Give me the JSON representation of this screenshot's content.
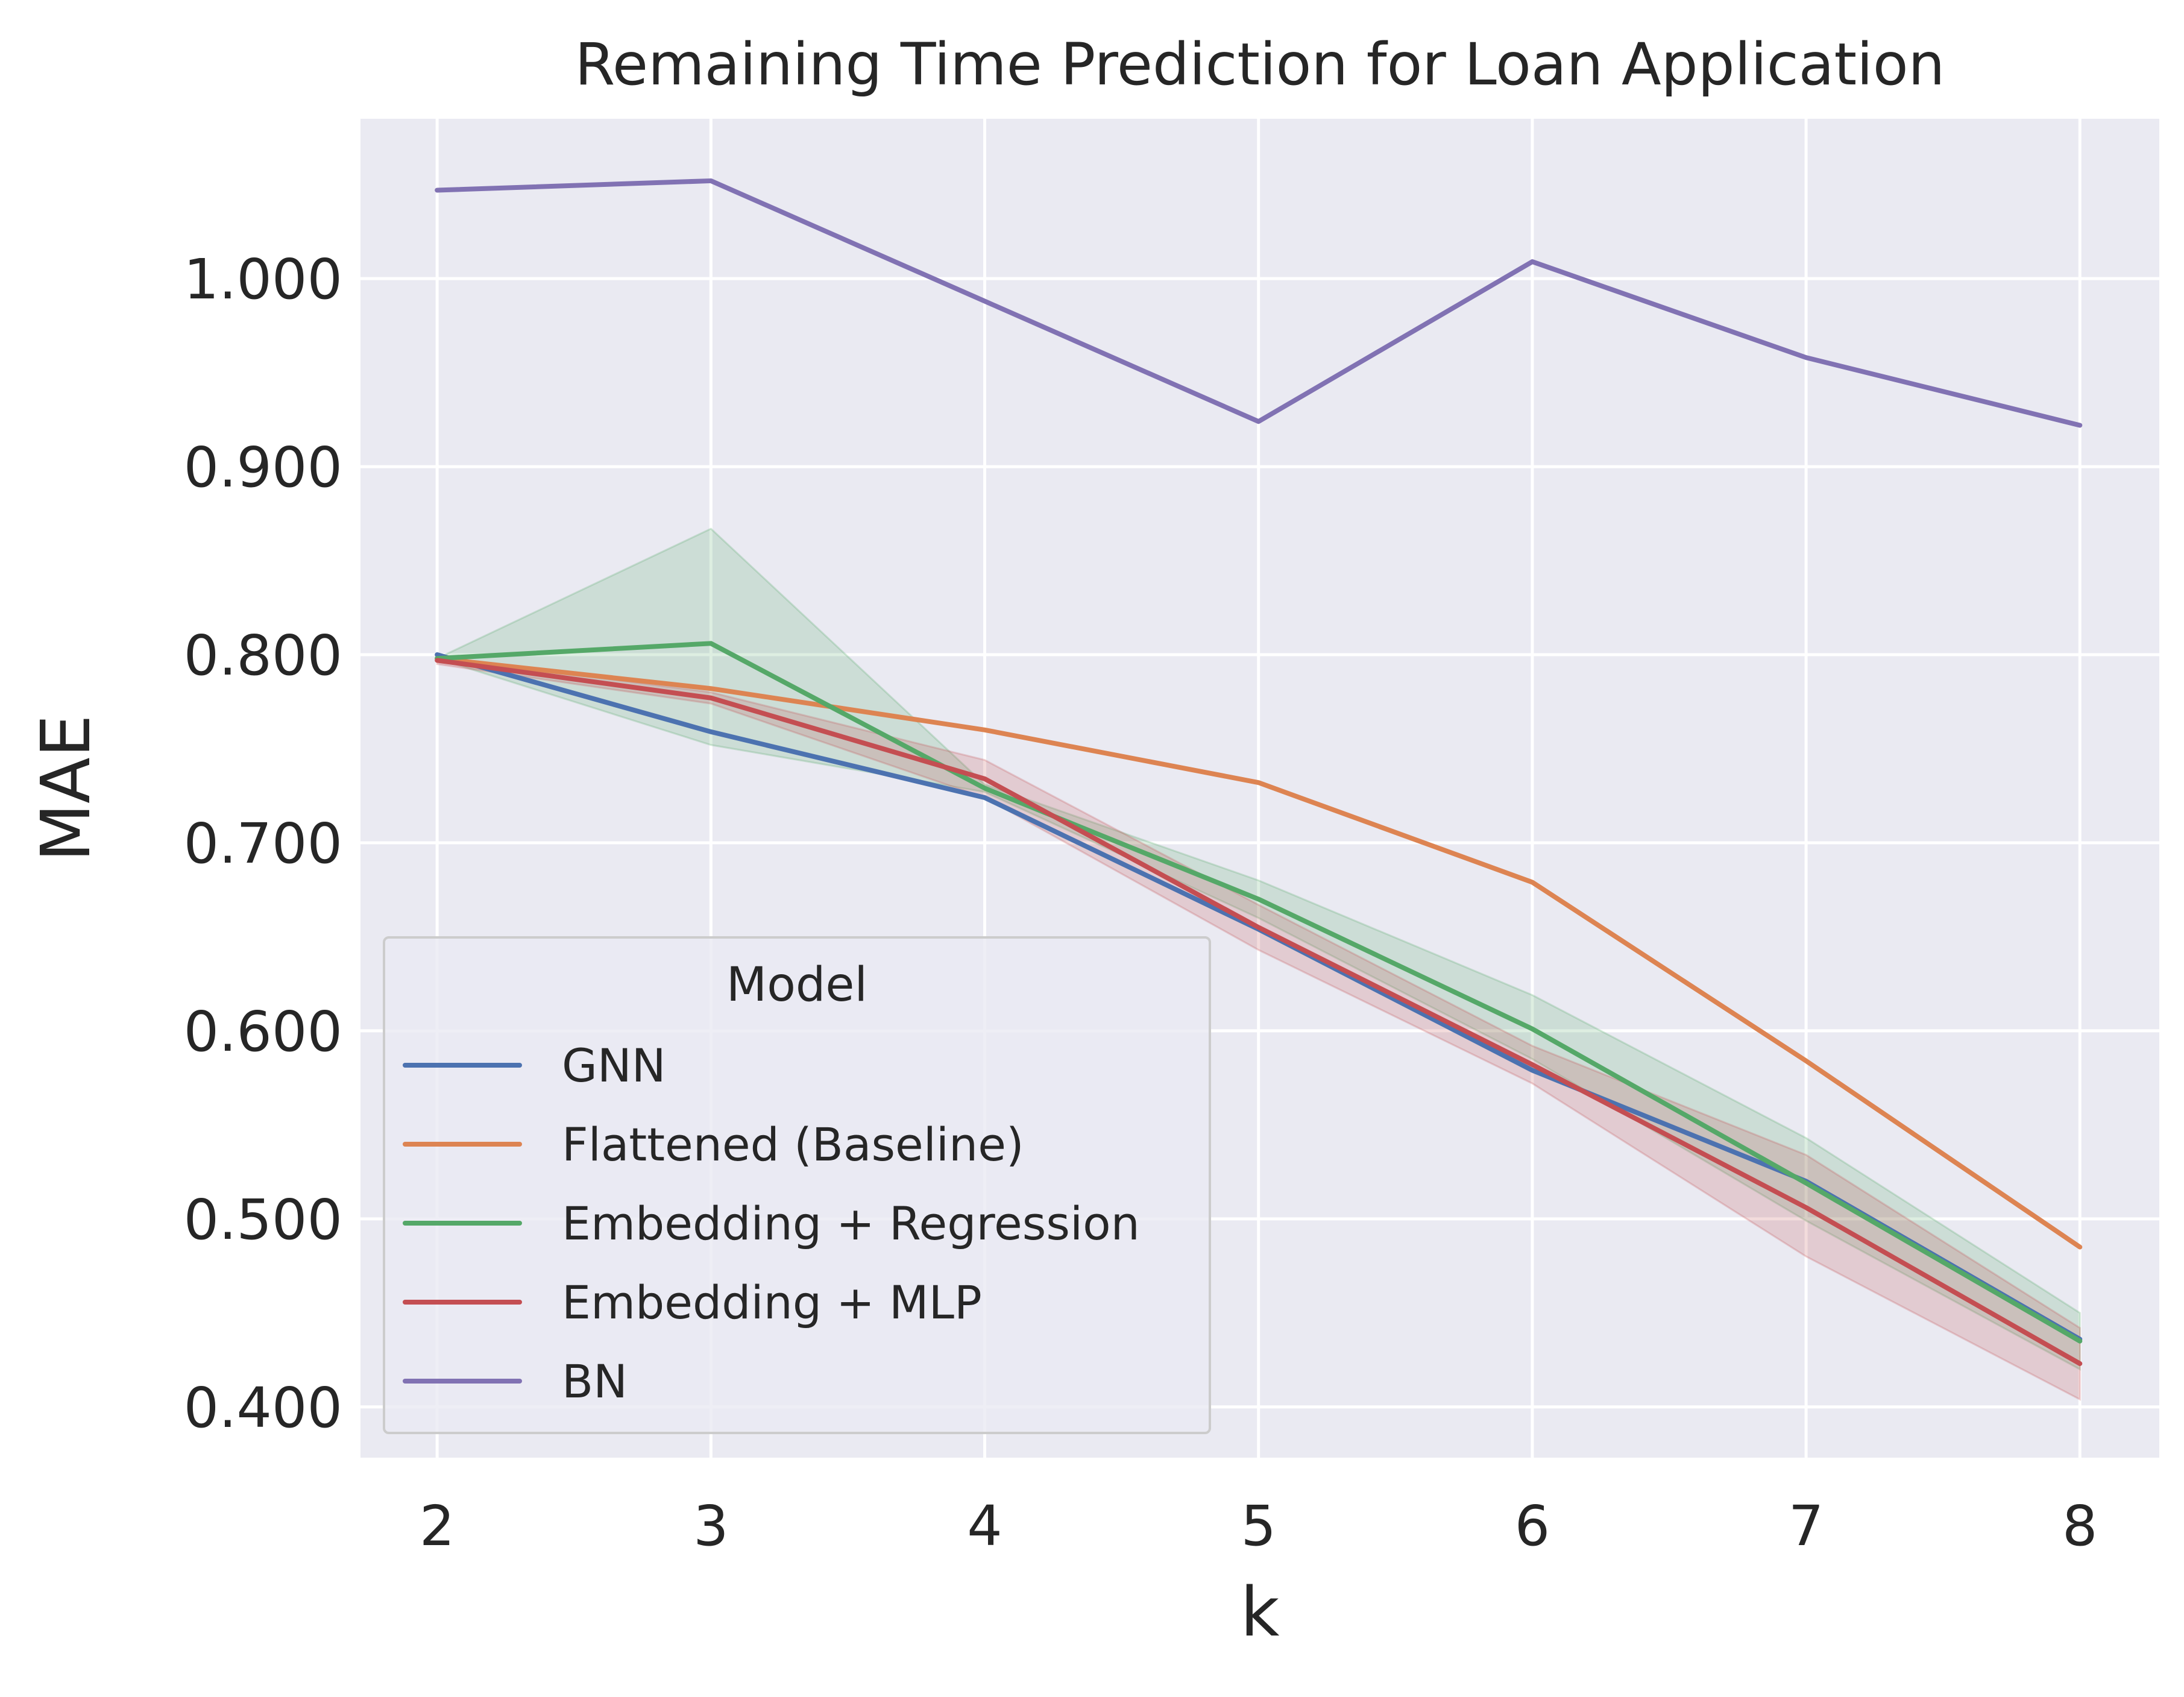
{
  "chart_data": {
    "type": "line",
    "title": "Remaining Time Prediction for Loan Application",
    "xlabel": "k",
    "ylabel": "MAE",
    "x": [
      2,
      3,
      4,
      5,
      6,
      7,
      8
    ],
    "x_ticks": [
      "2",
      "3",
      "4",
      "5",
      "6",
      "7",
      "8"
    ],
    "y_ticks": [
      "0.400",
      "0.500",
      "0.600",
      "0.700",
      "0.800",
      "0.900",
      "1.000"
    ],
    "xlim": [
      1.72,
      8.29
    ],
    "ylim": [
      0.373,
      1.085
    ],
    "grid": true,
    "legend": {
      "title": "Model",
      "placement": "lower-left"
    },
    "series": [
      {
        "name": "GNN",
        "color": "#4c72b0",
        "values": [
          0.8,
          0.759,
          0.724,
          0.654,
          0.579,
          0.52,
          0.436
        ],
        "band_low": null,
        "band_high": null
      },
      {
        "name": "Flattened (Baseline)",
        "color": "#dd8452",
        "values": [
          0.798,
          0.782,
          0.76,
          0.732,
          0.679,
          0.584,
          0.485
        ],
        "band_low": null,
        "band_high": null
      },
      {
        "name": "Embedding + Regression",
        "color": "#55a868",
        "values": [
          0.798,
          0.806,
          0.729,
          0.67,
          0.601,
          0.519,
          0.435
        ],
        "band_low": [
          0.798,
          0.752,
          0.727,
          0.66,
          0.585,
          0.499,
          0.42
        ],
        "band_high": [
          0.798,
          0.867,
          0.731,
          0.68,
          0.619,
          0.543,
          0.45
        ]
      },
      {
        "name": "Embedding + MLP",
        "color": "#c44e52",
        "values": [
          0.797,
          0.777,
          0.734,
          0.655,
          0.582,
          0.506,
          0.423
        ],
        "band_low": [
          0.795,
          0.774,
          0.724,
          0.643,
          0.572,
          0.48,
          0.404
        ],
        "band_high": [
          0.799,
          0.78,
          0.744,
          0.667,
          0.592,
          0.534,
          0.442
        ]
      },
      {
        "name": "BN",
        "color": "#8172b3",
        "values": [
          1.047,
          1.052,
          0.988,
          0.924,
          1.009,
          0.958,
          0.922
        ],
        "band_low": null,
        "band_high": null
      }
    ]
  }
}
